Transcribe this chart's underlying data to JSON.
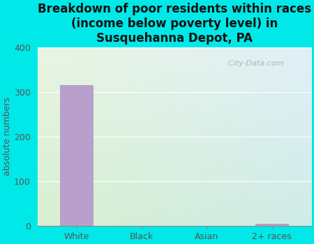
{
  "title": "Breakdown of poor residents within races\n(income below poverty level) in\nSusquehanna Depot, PA",
  "categories": [
    "White",
    "Black",
    "Asian",
    "2+ races"
  ],
  "values": [
    315,
    0,
    0,
    4
  ],
  "bar_color": "#b9a0cc",
  "bar_edge_color": "#b090c0",
  "ylabel": "absolute numbers",
  "ylim": [
    0,
    400
  ],
  "yticks": [
    0,
    100,
    200,
    300,
    400
  ],
  "background_color": "#00e8e8",
  "plot_bg_topleft": "#d8efe0",
  "plot_bg_topright": "#deeef8",
  "plot_bg_bottomleft": "#d0eba0",
  "plot_bg_bottomright": "#c8e8e0",
  "title_fontsize": 12,
  "axis_fontsize": 9,
  "tick_fontsize": 9,
  "watermark": "  City-Data.com",
  "watermark_icon": "©"
}
